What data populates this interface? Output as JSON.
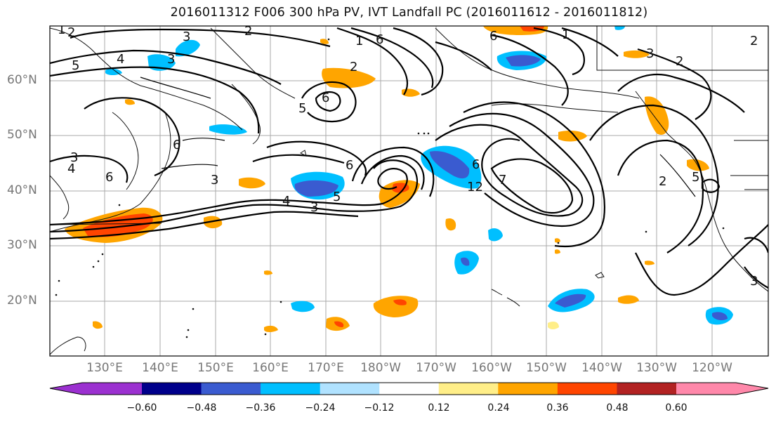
{
  "title": "2016011312 F006 300 hPa PV, IVT Landfall PC (2016011612 - 2016011812)",
  "lat_labels": [
    "60°N",
    "50°N",
    "40°N",
    "30°N",
    "20°N"
  ],
  "lon_labels": [
    "130°E",
    "140°E",
    "150°E",
    "160°E",
    "170°E",
    "180°W",
    "170°W",
    "160°W",
    "150°W",
    "140°W",
    "130°W",
    "120°W"
  ],
  "colorbar": {
    "ticks": [
      "−0.60",
      "−0.48",
      "−0.36",
      "−0.24",
      "−0.12",
      "0.12",
      "0.24",
      "0.36",
      "0.48",
      "0.60"
    ],
    "colors": [
      "#9b30d0",
      "#00008b",
      "#3a5bd0",
      "#00bfff",
      "#b0e2ff",
      "#ffffff",
      "#ffee88",
      "#ffa500",
      "#ff4500",
      "#b22222",
      "#ff88aa"
    ]
  },
  "contour_labels": [
    "2",
    "1",
    "5",
    "4",
    "3",
    "3",
    "2",
    "6",
    "1",
    "6",
    "2",
    "1",
    "3",
    "2",
    "6",
    "6",
    "6",
    "5",
    "3",
    "3",
    "4",
    "3",
    "5",
    "6",
    "6",
    "12",
    "7",
    "4",
    "5",
    "2",
    "3",
    "2"
  ],
  "fills": {
    "colors": {
      "light_blue": "#b0e2ff",
      "cyan": "#00bfff",
      "blue": "#3a5bd0",
      "light_yellow": "#ffee88",
      "orange": "#ffa500",
      "red_orange": "#ff4500"
    }
  }
}
